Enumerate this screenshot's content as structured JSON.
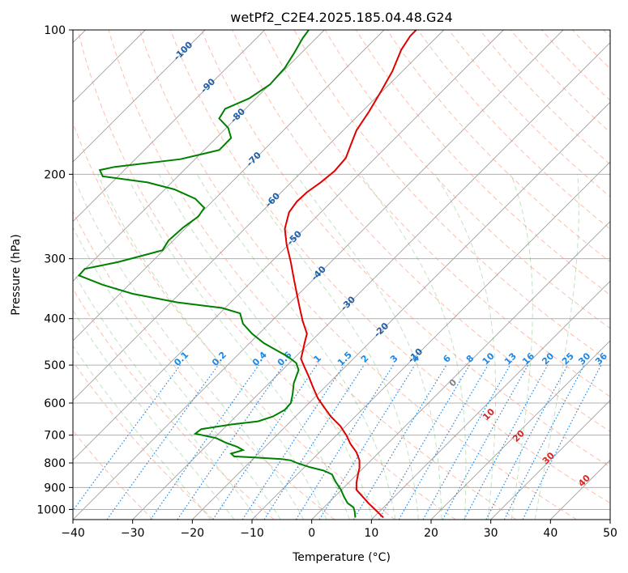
{
  "chart_data": {
    "type": "line",
    "title": "wetPf2_C2E4.2025.185.04.48.G24",
    "xlabel": "Temperature (°C)",
    "ylabel": "Pressure (hPa)",
    "xlim": [
      -40,
      50
    ],
    "ylim": [
      1050,
      100
    ],
    "y_scale": "log",
    "grid": true,
    "x_ticks": [
      -40,
      -30,
      -20,
      -10,
      0,
      10,
      20,
      30,
      40,
      50
    ],
    "y_ticks": [
      1000,
      900,
      800,
      700,
      600,
      500,
      400,
      300,
      200,
      100
    ],
    "x_tick_labels": [
      "−40",
      "−30",
      "−20",
      "−10",
      "0",
      "10",
      "20",
      "30",
      "40",
      "50"
    ],
    "y_tick_labels": [
      "1000",
      "900",
      "800",
      "700",
      "600",
      "500",
      "400",
      "300",
      "200",
      "100"
    ],
    "series": [
      {
        "role": "temperature",
        "color": "#e00000",
        "points": [
          [
            12.0,
            1040
          ],
          [
            9.5,
            970
          ],
          [
            7.5,
            910
          ],
          [
            7.5,
            880
          ],
          [
            7.8,
            840
          ],
          [
            8.0,
            820
          ],
          [
            8.0,
            790
          ],
          [
            7.5,
            760
          ],
          [
            6.5,
            730
          ],
          [
            5.8,
            700
          ],
          [
            4.8,
            670
          ],
          [
            3.2,
            640
          ],
          [
            2.2,
            615
          ],
          [
            1.0,
            585
          ],
          [
            0.2,
            555
          ],
          [
            -0.5,
            528
          ],
          [
            -1.2,
            505
          ],
          [
            -1.8,
            485
          ],
          [
            -1.5,
            468
          ],
          [
            -1.2,
            450
          ],
          [
            -0.8,
            430
          ],
          [
            -1.5,
            405
          ],
          [
            -2.0,
            380
          ],
          [
            -2.5,
            355
          ],
          [
            -3.0,
            330
          ],
          [
            -3.5,
            305
          ],
          [
            -4.2,
            280
          ],
          [
            -4.5,
            260
          ],
          [
            -3.8,
            240
          ],
          [
            -2.5,
            228
          ],
          [
            -0.8,
            218
          ],
          [
            1.5,
            208
          ],
          [
            3.8,
            197
          ],
          [
            5.7,
            185
          ],
          [
            6.6,
            173
          ],
          [
            7.5,
            162
          ],
          [
            9.6,
            148
          ],
          [
            11.5,
            135
          ],
          [
            13.5,
            122
          ],
          [
            15.0,
            110
          ],
          [
            16.5,
            103
          ],
          [
            17.5,
            100
          ]
        ]
      },
      {
        "role": "dewpoint",
        "color": "#008000",
        "points": [
          [
            7.3,
            1040
          ],
          [
            7.2,
            1010
          ],
          [
            7.0,
            990
          ],
          [
            6.0,
            970
          ],
          [
            5.4,
            940
          ],
          [
            4.9,
            910
          ],
          [
            4.0,
            875
          ],
          [
            3.4,
            845
          ],
          [
            2.0,
            830
          ],
          [
            -0.5,
            815
          ],
          [
            -2.5,
            800
          ],
          [
            -3.5,
            790
          ],
          [
            -5.0,
            785
          ],
          [
            -9.0,
            780
          ],
          [
            -13.0,
            775
          ],
          [
            -13.5,
            765
          ],
          [
            -11.5,
            752
          ],
          [
            -12.5,
            740
          ],
          [
            -14.5,
            725
          ],
          [
            -16.0,
            710
          ],
          [
            -19.5,
            695
          ],
          [
            -18.5,
            680
          ],
          [
            -13.5,
            665
          ],
          [
            -9.0,
            655
          ],
          [
            -6.5,
            640
          ],
          [
            -4.5,
            620
          ],
          [
            -3.5,
            600
          ],
          [
            -3.2,
            575
          ],
          [
            -3.0,
            545
          ],
          [
            -2.2,
            512
          ],
          [
            -2.6,
            495
          ],
          [
            -4.0,
            480
          ],
          [
            -6.0,
            465
          ],
          [
            -8.0,
            450
          ],
          [
            -10.0,
            430
          ],
          [
            -11.5,
            410
          ],
          [
            -12.0,
            390
          ],
          [
            -15.0,
            380
          ],
          [
            -22.5,
            370
          ],
          [
            -30.0,
            355
          ],
          [
            -35.0,
            340
          ],
          [
            -39.0,
            325
          ],
          [
            -38.0,
            315
          ],
          [
            -32.5,
            305
          ],
          [
            -29.0,
            297
          ],
          [
            -25.0,
            288
          ],
          [
            -24.0,
            275
          ],
          [
            -21.5,
            258
          ],
          [
            -19.0,
            245
          ],
          [
            -18.0,
            235
          ],
          [
            -19.5,
            225
          ],
          [
            -23.0,
            215
          ],
          [
            -27.5,
            208
          ],
          [
            -35.0,
            202
          ],
          [
            -35.5,
            196
          ],
          [
            -33.0,
            193
          ],
          [
            -22.0,
            186
          ],
          [
            -15.5,
            178
          ],
          [
            -13.5,
            168
          ],
          [
            -14.0,
            160
          ],
          [
            -15.5,
            153
          ],
          [
            -14.5,
            146
          ],
          [
            -10.5,
            139
          ],
          [
            -7.0,
            130
          ],
          [
            -4.5,
            120
          ],
          [
            -3.0,
            112
          ],
          [
            -1.5,
            104
          ],
          [
            -0.5,
            100
          ]
        ]
      }
    ],
    "isotherm_labels": [
      "-100",
      "-90",
      "-80",
      "-70",
      "-60",
      "-50",
      "-40",
      "-30",
      "-20",
      "-10"
    ],
    "mixing_ratio_labels": [
      "0.1",
      "0.2",
      "0.4",
      "0.6",
      "1",
      "1.5",
      "2",
      "3",
      "4",
      "6",
      "8",
      "10",
      "13",
      "16",
      "20",
      "25",
      "30",
      "36"
    ],
    "dry_adiabat_labels": [
      "0",
      "10",
      "20",
      "30",
      "40"
    ],
    "colors": {
      "temperature": "#e00000",
      "dewpoint": "#008000",
      "isotherm_label": "#1f5fa8",
      "mixing_ratio": "#1e88e5",
      "dry_adiabat": "#fb8a6a",
      "dry_adiabat_label": "#d62728",
      "moist_adiabat": "#4caf50",
      "moist_adiabat_label": "#808080",
      "isotherm": "#a0a0a0",
      "grid": "#b0b0b0",
      "freezing": "#d4b896"
    }
  }
}
